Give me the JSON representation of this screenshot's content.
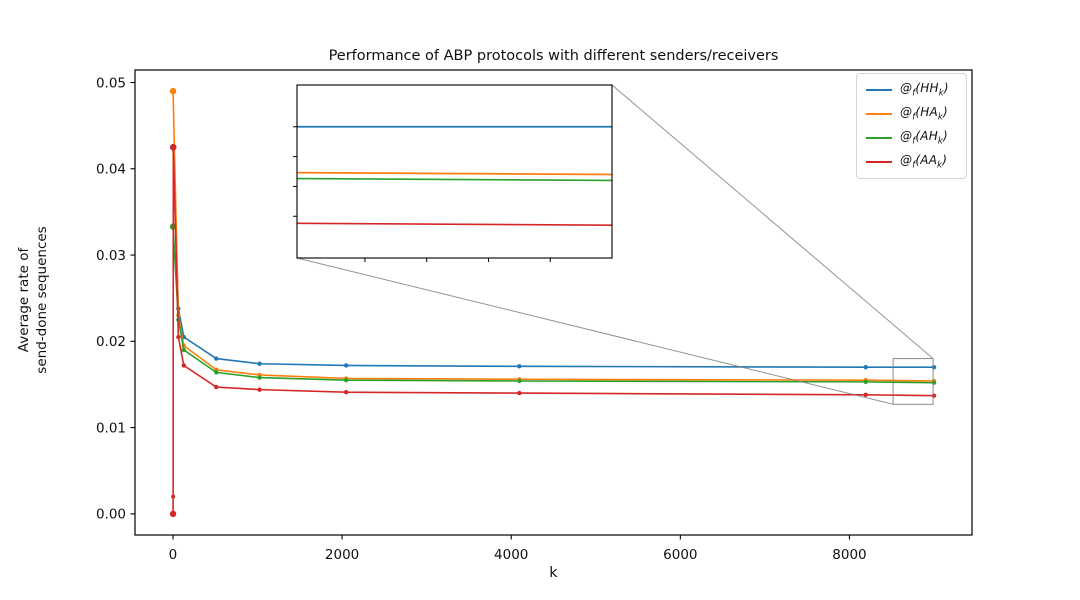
{
  "figure": {
    "background": "#ffffff"
  },
  "title": {
    "text": "Performance of ABP protocols with different senders/receivers"
  },
  "axes": {
    "xlabel": "k",
    "ylabel_lines": [
      "Average rate of",
      "send-done sequences"
    ],
    "xtick_labels": [
      "0",
      "2000",
      "4000",
      "6000",
      "8000"
    ],
    "ytick_labels": [
      "0.00",
      "0.01",
      "0.02",
      "0.03",
      "0.04",
      "0.05"
    ]
  },
  "legend": {
    "format": {
      "at": "@",
      "fsub": "f",
      "open": "(",
      "ksub": "k",
      "close": ")"
    },
    "items": [
      {
        "name": "HH",
        "body": "HH",
        "text": "@f(HHk)",
        "color": "#1f77b4"
      },
      {
        "name": "HA",
        "body": "HA",
        "text": "@f(HAk)",
        "color": "#ff7f0e"
      },
      {
        "name": "AH",
        "body": "AH",
        "text": "@f(AHk)",
        "color": "#2ca02c"
      },
      {
        "name": "AA",
        "body": "AA",
        "text": "@f(AAk)",
        "color": "#d62728"
      }
    ]
  },
  "chart_data": {
    "type": "line",
    "title": "Performance of ABP protocols with different senders/receivers",
    "xlabel": "k",
    "ylabel": "Average rate of send-done sequences",
    "xlim": [
      -449,
      9449
    ],
    "ylim": [
      -0.00245,
      0.05145
    ],
    "xticks": [
      0,
      2000,
      4000,
      6000,
      8000
    ],
    "yticks": [
      0.0,
      0.01,
      0.02,
      0.03,
      0.04,
      0.05
    ],
    "grid": false,
    "legend_position": "upper right",
    "series": [
      {
        "name": "HH",
        "label": "@f(HHk)",
        "color": "#1f77b4",
        "x": [
          1,
          64,
          128,
          512,
          1024,
          2048,
          4096,
          8192,
          9000
        ],
        "y": [
          0.0425,
          0.0238,
          0.0205,
          0.018,
          0.0174,
          0.0172,
          0.0171,
          0.017,
          0.017
        ]
      },
      {
        "name": "HA",
        "label": "@f(HAk)",
        "color": "#ff7f0e",
        "x": [
          1,
          64,
          128,
          512,
          1024,
          2048,
          4096,
          8192,
          9000
        ],
        "y": [
          0.049,
          0.023,
          0.0195,
          0.0167,
          0.0161,
          0.0157,
          0.0156,
          0.0155,
          0.0154
        ]
      },
      {
        "name": "AH",
        "label": "@f(AHk)",
        "color": "#2ca02c",
        "x": [
          1,
          64,
          128,
          512,
          1024,
          2048,
          4096,
          8192,
          9000
        ],
        "y": [
          0.0333,
          0.0225,
          0.019,
          0.0164,
          0.0158,
          0.0155,
          0.0154,
          0.0153,
          0.0152
        ]
      },
      {
        "name": "AA",
        "label": "@f(AAk)",
        "color": "#d62728",
        "x": [
          1,
          2,
          4,
          64,
          128,
          512,
          1024,
          2048,
          4096,
          8192,
          9000
        ],
        "y": [
          0.0,
          0.002,
          0.0425,
          0.0205,
          0.0172,
          0.0147,
          0.0144,
          0.0141,
          0.014,
          0.0138,
          0.0137
        ]
      }
    ],
    "inset": {
      "xlim": [
        8490,
        9000
      ],
      "ylim": [
        0.0126,
        0.0184
      ],
      "xticks": [
        8600,
        8700,
        8800,
        8900
      ],
      "yticks": [
        0.014,
        0.015,
        0.016,
        0.017
      ],
      "zoom_rect": {
        "x": [
          8516,
          8989
        ],
        "y": [
          0.0127,
          0.018
        ]
      }
    },
    "styles": {
      "spine_color": "#000000",
      "connector_color": "#7f7f7f"
    }
  }
}
